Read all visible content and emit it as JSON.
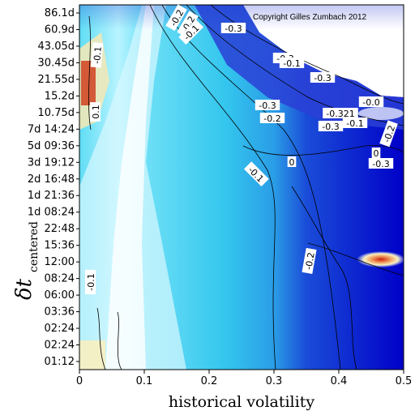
{
  "chart_data": {
    "type": "heatmap",
    "title": "",
    "xlabel": "historical volatility",
    "ylabel_main": "δt",
    "ylabel_sub": "centered",
    "xlim": [
      0,
      0.5
    ],
    "x_ticks": [
      "0",
      "0.1",
      "0.2",
      "0.3",
      "0.4",
      "0.5"
    ],
    "y_ticks": [
      "01:12",
      "02:24",
      "02:24",
      "03:36",
      "06:00",
      "08:24",
      "12:00",
      "15:36",
      "22:48",
      "1d 08:24",
      "1d 21:36",
      "2d 16:48",
      "3d 19:12",
      "5d 09:36",
      "7d 14:24",
      "10.75d",
      "15.2d",
      "21.55d",
      "30.45d",
      "43.05d",
      "60.9d",
      "86.1d"
    ],
    "grid": false,
    "legend": "none",
    "copyright": "Copyright Gilles Zumbach 2012",
    "contour_labels": [
      "-0.2",
      "-0.1",
      "-0.2",
      "-0.3",
      "-0.3",
      "-0.1",
      "-0.3",
      "-0.0",
      "-0.3",
      "-0.321",
      "-0.3",
      "-0.1",
      "-0.2",
      "-0.2",
      "0",
      "-0.3",
      "-0.1",
      "-0.2",
      "0.1",
      "-0.1",
      "-0.1",
      "0"
    ],
    "colors": {
      "lowest": "#0000c8",
      "low": "#1e40e0",
      "mid": "#30c8f0",
      "high": "#d8f8ff",
      "zero": "#ffffff",
      "positive": "#f8f0c0",
      "hot": "#e03010"
    }
  }
}
